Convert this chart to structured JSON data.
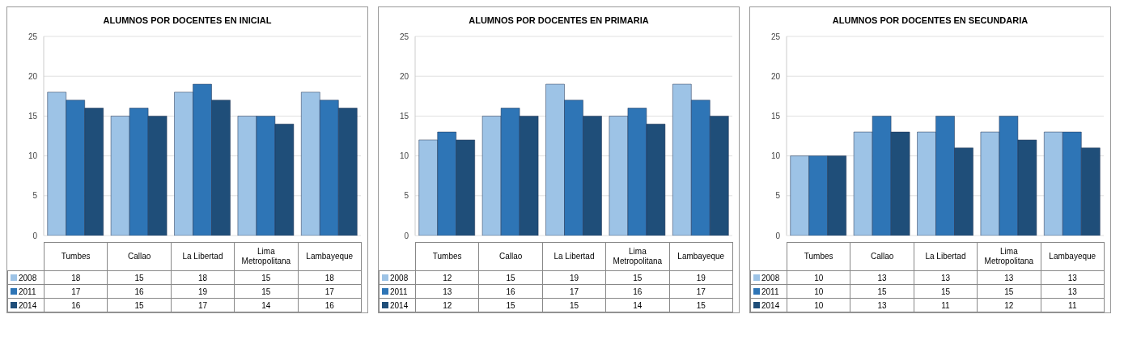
{
  "chart_data": [
    {
      "type": "bar",
      "title": "ALUMNOS POR DOCENTES EN INICIAL",
      "categories": [
        "Tumbes",
        "Callao",
        "La Libertad",
        "Lima Metropolitana",
        "Lambayeque"
      ],
      "series": [
        {
          "name": "2008",
          "color": "#9dc3e6",
          "values": [
            18,
            15,
            18,
            15,
            18
          ]
        },
        {
          "name": "2011",
          "color": "#2e75b6",
          "values": [
            17,
            16,
            19,
            15,
            17
          ]
        },
        {
          "name": "2014",
          "color": "#1f4e79",
          "values": [
            16,
            15,
            17,
            14,
            16
          ]
        }
      ],
      "ylim": [
        0,
        25
      ],
      "yticks": [
        0,
        5,
        10,
        15,
        20,
        25
      ],
      "grid": "y",
      "data_labels": true,
      "legend": "bottom left"
    },
    {
      "type": "bar",
      "title": "ALUMNOS POR DOCENTES EN PRIMARIA",
      "categories": [
        "Tumbes",
        "Callao",
        "La Libertad",
        "Lima Metropolitana",
        "Lambayeque"
      ],
      "series": [
        {
          "name": "2008",
          "color": "#9dc3e6",
          "values": [
            12,
            15,
            19,
            15,
            19
          ]
        },
        {
          "name": "2011",
          "color": "#2e75b6",
          "values": [
            13,
            16,
            17,
            16,
            17
          ]
        },
        {
          "name": "2014",
          "color": "#1f4e79",
          "values": [
            12,
            15,
            15,
            14,
            15
          ]
        }
      ],
      "ylim": [
        0,
        25
      ],
      "yticks": [
        0,
        5,
        10,
        15,
        20,
        25
      ],
      "grid": "y",
      "data_labels": true,
      "legend": "bottom left"
    },
    {
      "type": "bar",
      "title": "ALUMNOS POR DOCENTES EN SECUNDARIA",
      "categories": [
        "Tumbes",
        "Callao",
        "La Libertad",
        "Lima Metropolitana",
        "Lambayeque"
      ],
      "series": [
        {
          "name": "2008",
          "color": "#9dc3e6",
          "values": [
            10,
            13,
            13,
            13,
            13
          ]
        },
        {
          "name": "2011",
          "color": "#2e75b6",
          "values": [
            10,
            15,
            15,
            15,
            13
          ]
        },
        {
          "name": "2014",
          "color": "#1f4e79",
          "values": [
            10,
            13,
            11,
            12,
            11
          ]
        }
      ],
      "ylim": [
        0,
        25
      ],
      "yticks": [
        0,
        5,
        10,
        15,
        20,
        25
      ],
      "grid": "y",
      "data_labels": true,
      "legend": "bottom left"
    }
  ]
}
